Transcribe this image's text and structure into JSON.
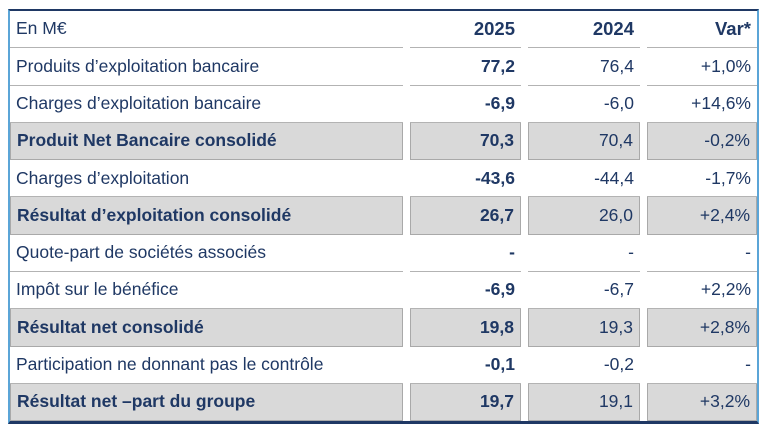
{
  "colors": {
    "text_navy": "#1f3864",
    "row_shade_gray": "#d9d9d9",
    "side_border_blue": "#5ba5d7",
    "separator_gray": "#b3b3b3"
  },
  "table": {
    "unit_label": "En M€",
    "columns": [
      "2025",
      "2024",
      "Var*"
    ],
    "rows": [
      {
        "label": "Produits d’exploitation bancaire",
        "v2025": "77,2",
        "v2024": "76,4",
        "var": "+1,0%",
        "emphasis": false
      },
      {
        "label": "Charges d’exploitation bancaire",
        "v2025": "-6,9",
        "v2024": "-6,0",
        "var": "+14,6%",
        "emphasis": false
      },
      {
        "label": "Produit Net Bancaire consolidé",
        "v2025": "70,3",
        "v2024": "70,4",
        "var": "-0,2%",
        "emphasis": true
      },
      {
        "label": "Charges d’exploitation",
        "v2025": "-43,6",
        "v2024": "-44,4",
        "var": "-1,7%",
        "emphasis": false
      },
      {
        "label": "Résultat d’exploitation consolidé",
        "v2025": "26,7",
        "v2024": "26,0",
        "var": "+2,4%",
        "emphasis": true
      },
      {
        "label": "Quote-part de sociétés associés",
        "v2025": "-",
        "v2024": "-",
        "var": "-",
        "emphasis": false
      },
      {
        "label": "Impôt sur le bénéfice",
        "v2025": "-6,9",
        "v2024": "-6,7",
        "var": "+2,2%",
        "emphasis": false
      },
      {
        "label": "Résultat net consolidé",
        "v2025": "19,8",
        "v2024": "19,3",
        "var": "+2,8%",
        "emphasis": true
      },
      {
        "label": "Participation ne donnant pas le contrôle",
        "v2025": "-0,1",
        "v2024": "-0,2",
        "var": "-",
        "emphasis": false
      },
      {
        "label": "Résultat net –part du groupe",
        "v2025": "19,7",
        "v2024": "19,1",
        "var": "+3,2%",
        "emphasis": true
      }
    ]
  }
}
